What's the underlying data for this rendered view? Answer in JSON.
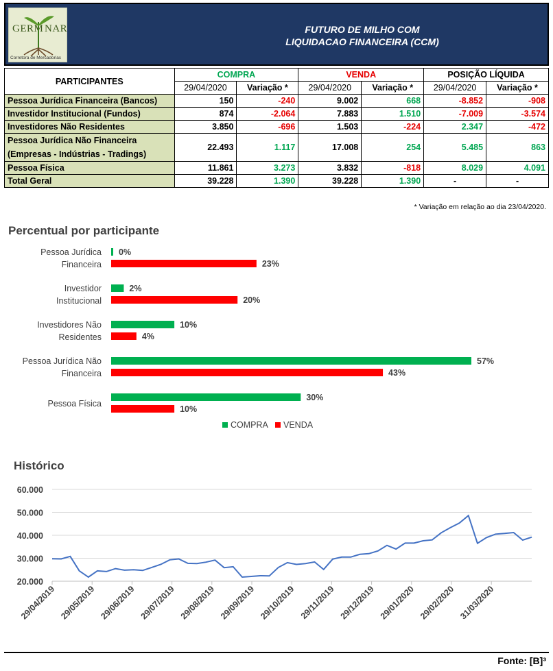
{
  "header": {
    "logo_left": "GERM",
    "logo_right": "NAR",
    "logo_sub": "Corretora de Mercadorias",
    "title_line1": "FUTURO DE MILHO COM",
    "title_line2": "LIQUIDACAO FINANCEIRA (CCM)"
  },
  "table": {
    "col_participantes": "PARTICIPANTES",
    "group_compra": "COMPRA",
    "group_venda": "VENDA",
    "group_liquida": "POSIÇÃO LÍQUIDA",
    "date": "29/04/2020",
    "var": "Variação *",
    "rows": [
      {
        "label": "Pessoa Jurídica Financeira (Bancos)",
        "compra": "150",
        "compra_var": "-240",
        "venda": "9.002",
        "venda_var": "668",
        "liq": "-8.852",
        "liq_var": "-908"
      },
      {
        "label": "Investidor Institucional (Fundos)",
        "compra": "874",
        "compra_var": "-2.064",
        "venda": "7.883",
        "venda_var": "1.510",
        "liq": "-7.009",
        "liq_var": "-3.574"
      },
      {
        "label": "Investidores Não Residentes",
        "compra": "3.850",
        "compra_var": "-696",
        "venda": "1.503",
        "venda_var": "-224",
        "liq": "2.347",
        "liq_var": "-472"
      },
      {
        "label": "Pessoa Jurídica Não Financeira",
        "label2": "(Empresas - Indústrias - Tradings)",
        "compra": "22.493",
        "compra_var": "1.117",
        "venda": "17.008",
        "venda_var": "254",
        "liq": "5.485",
        "liq_var": "863"
      },
      {
        "label": "Pessoa Física",
        "compra": "11.861",
        "compra_var": "3.273",
        "venda": "3.832",
        "venda_var": "-818",
        "liq": "8.029",
        "liq_var": "4.091"
      }
    ],
    "total": {
      "label": "Total Geral",
      "compra": "39.228",
      "compra_var": "1.390",
      "venda": "39.228",
      "venda_var": "1.390",
      "liq": "-",
      "liq_var": "-"
    },
    "footnote": "* Variação em relação ao dia 23/04/2020."
  },
  "colors": {
    "compra": "#00b050",
    "venda": "#ff0000",
    "line": "#4472c4",
    "header_bg": "#1f3864",
    "label_bg": "#d9e1b8"
  },
  "chart_data": [
    {
      "type": "bar",
      "title": "Percentual por participante",
      "categories": [
        [
          "Pessoa Jurídica",
          "Financeira"
        ],
        [
          "Investidor",
          "Institucional"
        ],
        [
          "Investidores Não",
          "Residentes"
        ],
        [
          "Pessoa Jurídica Não",
          "Financeira"
        ],
        [
          "Pessoa Física"
        ]
      ],
      "series": [
        {
          "name": "COMPRA",
          "values": [
            0,
            2,
            10,
            57,
            30
          ],
          "labels": [
            "0%",
            "2%",
            "10%",
            "57%",
            "30%"
          ]
        },
        {
          "name": "VENDA",
          "values": [
            23,
            20,
            4,
            43,
            10
          ],
          "labels": [
            "23%",
            "20%",
            "4%",
            "43%",
            "10%"
          ]
        }
      ],
      "orientation": "horizontal",
      "xlim": [
        0,
        57
      ],
      "legend": "bottom"
    },
    {
      "type": "line",
      "title": "Histórico",
      "ylim": [
        20000,
        60000
      ],
      "yticks": [
        "20.000",
        "30.000",
        "40.000",
        "50.000",
        "60.000"
      ],
      "xticks": [
        "29/04/2019",
        "29/05/2019",
        "29/06/2019",
        "29/07/2019",
        "29/08/2019",
        "29/09/2019",
        "29/10/2019",
        "29/11/2019",
        "29/12/2019",
        "29/01/2020",
        "29/02/2020",
        "31/03/2020"
      ],
      "values": [
        29800,
        29700,
        30800,
        24500,
        21800,
        24500,
        24200,
        25500,
        24800,
        25000,
        24700,
        26000,
        27300,
        29300,
        29700,
        27800,
        27700,
        28300,
        29200,
        25900,
        26300,
        21800,
        22100,
        22400,
        22300,
        26000,
        28100,
        27300,
        27700,
        28400,
        25100,
        29600,
        30500,
        30500,
        31700,
        32000,
        33200,
        35600,
        34000,
        36600,
        36600,
        37600,
        38000,
        41100,
        43300,
        45300,
        48600,
        36500,
        39000,
        40500,
        40800,
        41200,
        37900,
        39200
      ],
      "grid": true
    }
  ],
  "footer": {
    "source": "Fonte: [B]³"
  }
}
